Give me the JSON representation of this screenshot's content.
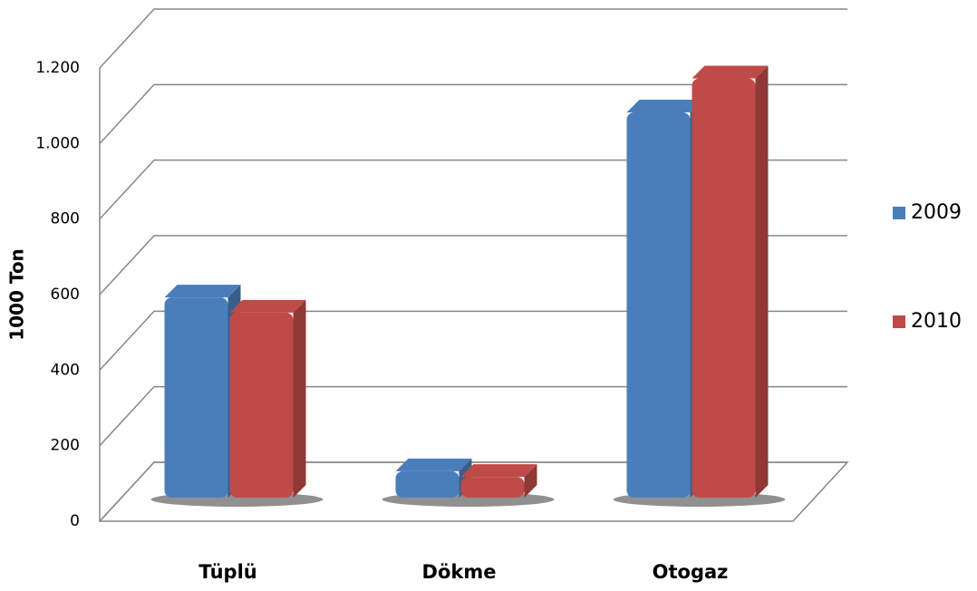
{
  "chart_data": {
    "type": "bar3d",
    "y_label": "1000 Ton",
    "categories": [
      "Tüplü",
      "Dökme",
      "Otogaz"
    ],
    "series": [
      {
        "name": "2009",
        "color": "#4a7ebb",
        "values": [
          530,
          70,
          1020
        ]
      },
      {
        "name": "2010",
        "color": "#be4b48",
        "values": [
          490,
          55,
          1110
        ]
      }
    ],
    "ylim": [
      0,
      1200
    ],
    "yticks": [
      0,
      200,
      400,
      600,
      800,
      {
        "value": 1000,
        "label": "1.000"
      },
      {
        "value": 1200,
        "label": "1.200"
      }
    ],
    "grid": true,
    "legend": "right"
  }
}
